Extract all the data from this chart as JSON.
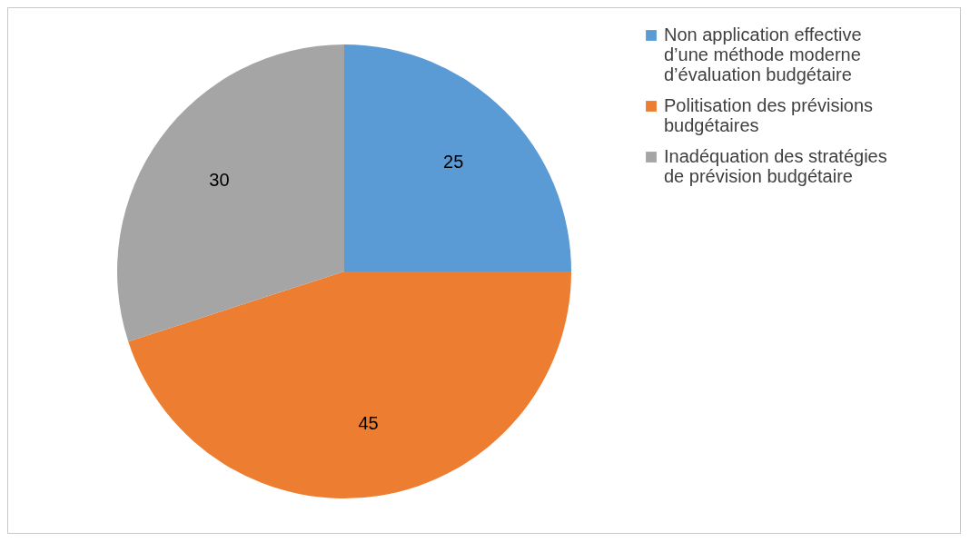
{
  "chart_data": {
    "type": "pie",
    "categories": [
      "Non application effective d’une méthode moderne d’évaluation budgétaire",
      "Politisation des prévisions budgétaires",
      "Inadéquation des stratégies de prévision budgétaire"
    ],
    "values": [
      25,
      45,
      30
    ],
    "colors": [
      "#5b9bd5",
      "#ed7d31",
      "#a5a5a5"
    ],
    "data_labels": true,
    "legend": "right"
  }
}
